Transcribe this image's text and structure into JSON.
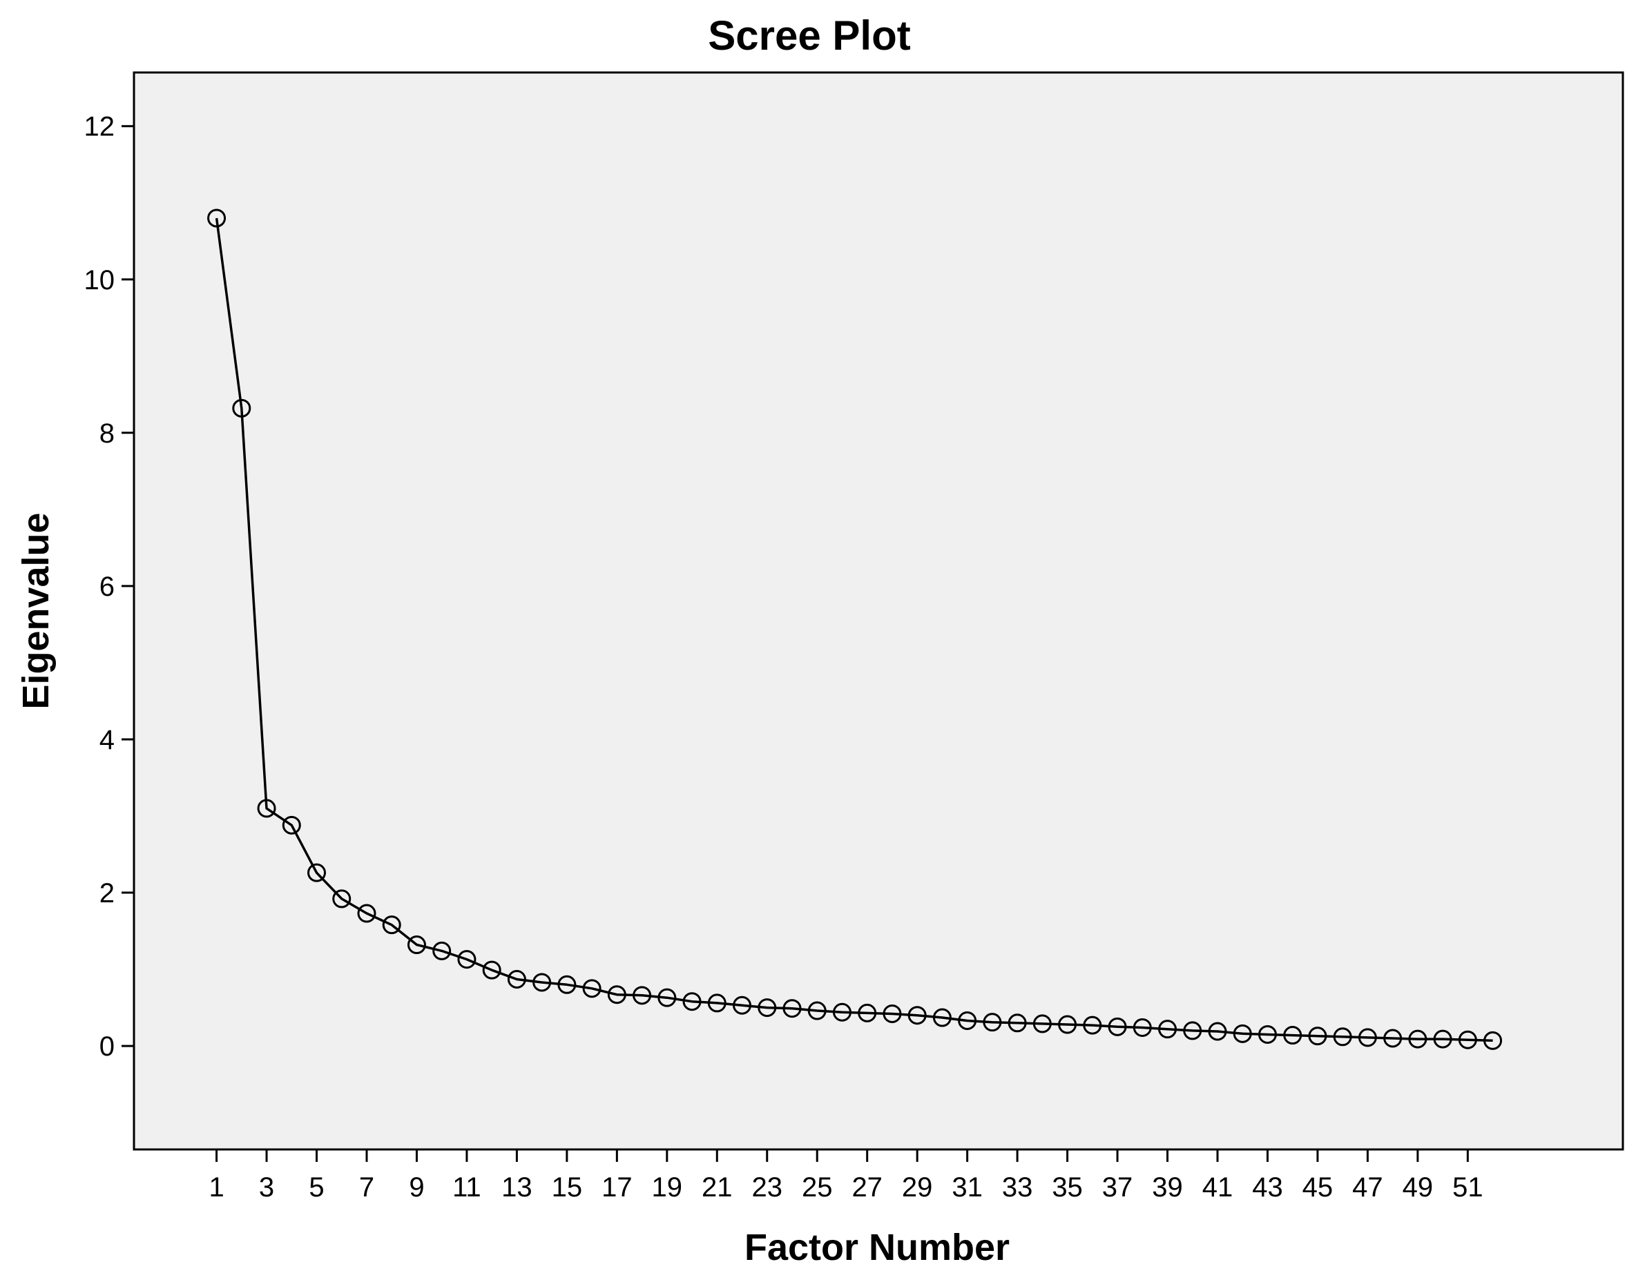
{
  "chart_data": {
    "type": "line",
    "title": "Scree Plot",
    "xlabel": "Factor Number",
    "ylabel": "Eigenvalue",
    "xlim": [
      -2.3,
      57.2
    ],
    "ylim": [
      -1.35,
      12.7
    ],
    "x_tick_labels": [
      "1",
      "3",
      "5",
      "7",
      "9",
      "11",
      "13",
      "15",
      "17",
      "19",
      "21",
      "23",
      "25",
      "27",
      "29",
      "31",
      "33",
      "35",
      "37",
      "39",
      "41",
      "43",
      "45",
      "47",
      "49",
      "51"
    ],
    "y_ticks": [
      0,
      2,
      4,
      6,
      8,
      10,
      12
    ],
    "y_tick_labels": [
      "0",
      "2",
      "4",
      "6",
      "8",
      "10",
      "12"
    ],
    "grid": false,
    "marker": "open-circle",
    "colors": {
      "plot_background": "#f0f0f0",
      "line": "#000000",
      "marker_stroke": "#000000"
    },
    "series": [
      {
        "x": [
          1,
          2,
          3,
          4,
          5,
          6,
          7,
          8,
          9,
          10,
          11,
          12,
          13,
          14,
          15,
          16,
          17,
          18,
          19,
          20,
          21,
          22,
          23,
          24,
          25,
          26,
          27,
          28,
          29,
          30,
          31,
          32,
          33,
          34,
          35,
          36,
          37,
          38,
          39,
          40,
          41,
          42,
          43,
          44,
          45,
          46,
          47,
          48,
          49,
          50,
          51,
          52
        ],
        "values": [
          10.8,
          8.32,
          3.1,
          2.88,
          2.26,
          1.92,
          1.73,
          1.58,
          1.32,
          1.24,
          1.13,
          0.99,
          0.87,
          0.83,
          0.8,
          0.75,
          0.67,
          0.66,
          0.63,
          0.58,
          0.56,
          0.53,
          0.5,
          0.49,
          0.46,
          0.44,
          0.43,
          0.42,
          0.4,
          0.37,
          0.33,
          0.31,
          0.3,
          0.29,
          0.28,
          0.27,
          0.25,
          0.24,
          0.22,
          0.2,
          0.19,
          0.16,
          0.15,
          0.14,
          0.13,
          0.12,
          0.11,
          0.1,
          0.09,
          0.09,
          0.08,
          0.07
        ]
      }
    ]
  }
}
